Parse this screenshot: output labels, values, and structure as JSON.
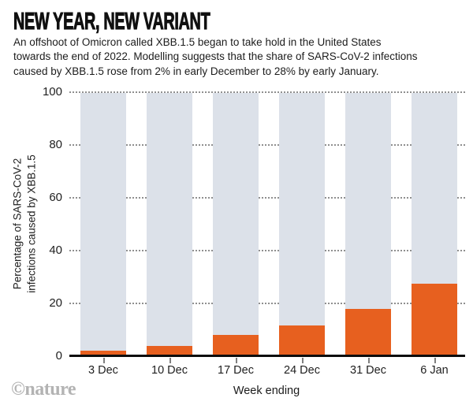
{
  "header": {
    "title": "NEW YEAR, NEW VARIANT",
    "subtitle": "An offshoot of Omicron called XBB.1.5 began to take hold in the United States towards the end of 2022. Modelling suggests that the share of SARS-CoV-2 infections caused by XBB.1.5 rose from 2% in early December to 28% by early January.",
    "subtitle_lines": [
      "An offshoot of Omicron called XBB.1.5 began to take hold in the United States",
      "towards the end of 2022. Modelling suggests that the share of SARS-CoV-2 infections",
      "caused by XBB.1.5 rose from 2% in early December to 28% by early January."
    ]
  },
  "chart_data": {
    "type": "bar",
    "title": "NEW YEAR, NEW VARIANT",
    "categories": [
      "3 Dec",
      "10 Dec",
      "17 Dec",
      "24 Dec",
      "31 Dec",
      "6 Jan"
    ],
    "values": [
      2,
      4,
      8,
      11.5,
      18,
      27.5
    ],
    "xlabel": "Week ending",
    "ylabel": "Percentage of SARS-CoV-2 infections caused by XBB.1.5",
    "ylabel_lines": [
      "Percentage of SARS-CoV-2",
      "infections caused by XBB.1.5"
    ],
    "yticks": [
      0,
      20,
      40,
      60,
      80,
      100
    ],
    "ylim": [
      0,
      100
    ],
    "grid": "dotted horizontal gridlines behind bars",
    "legend": "none",
    "track_max": 100,
    "notes": "each bar drawn on a full-height light grey-blue background column up to 100%"
  },
  "colors": {
    "bar_orange": "#e7601f",
    "track_blue_gray": "#dce1e9",
    "gridline_gray": "#8f8f8f",
    "axis_black": "#0d0d0d",
    "text_dark": "#1c1c1c",
    "credit_gray": "#b3b3b3"
  },
  "footer": {
    "credit": "©nature"
  }
}
